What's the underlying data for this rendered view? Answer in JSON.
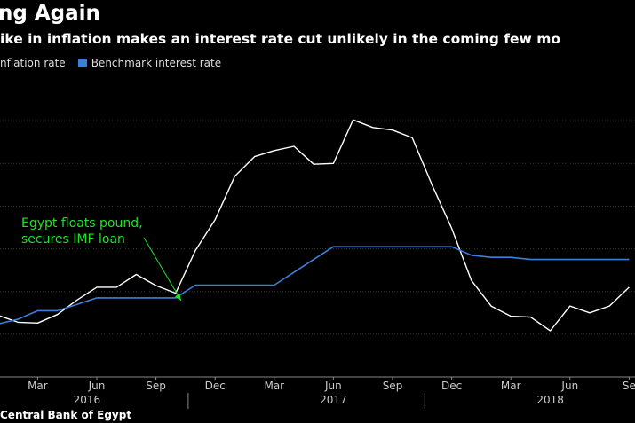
{
  "title": "ng Again",
  "subtitle": "ike in inflation makes an interest rate cut unlikely in the coming few mo",
  "source": "Central Bank of Egypt",
  "colors": {
    "inflation": "#ffffff",
    "benchmark": "#3d7edb",
    "annotation": "#22e02a",
    "grid": "#3a3a3a",
    "tick_text": "#cccccc"
  },
  "chart_data": {
    "type": "line",
    "xlabel": "",
    "ylabel": "",
    "grid": true,
    "legend": "top-left",
    "series": [
      {
        "name": "nflation rate",
        "color": "#ffffff",
        "values": [
          12.2,
          11.4,
          11.3,
          12.3,
          14.0,
          15.5,
          15.5,
          17.0,
          15.7,
          14.8,
          19.8,
          23.4,
          28.5,
          30.8,
          31.5,
          32.0,
          29.9,
          30.0,
          35.1,
          34.2,
          33.9,
          33.0,
          27.5,
          22.4,
          16.3,
          13.3,
          12.1,
          12.0,
          10.4,
          13.3,
          12.5,
          13.3,
          15.5
        ]
      },
      {
        "name": "Benchmark interest rate",
        "color": "#3d7edb",
        "values": [
          11.2,
          11.75,
          12.75,
          12.75,
          13.5,
          14.25,
          14.25,
          14.25,
          14.25,
          14.25,
          15.75,
          15.75,
          15.75,
          15.75,
          15.75,
          17.25,
          18.75,
          20.25,
          20.25,
          20.25,
          20.25,
          20.25,
          20.25,
          20.25,
          19.25,
          19.0,
          19.0,
          18.75,
          18.75,
          18.75,
          18.75,
          18.75,
          18.75
        ]
      }
    ],
    "x_tick_labels": [
      "Mar",
      "Jun",
      "Sep",
      "Dec",
      "Mar",
      "Jun",
      "Sep",
      "Dec",
      "Mar",
      "Jun",
      "Se"
    ],
    "x_group_labels": [
      "2016",
      "2017",
      "2018"
    ],
    "annotation": {
      "lines": [
        "Egypt floats pound,",
        "secures IMF loan"
      ]
    }
  }
}
